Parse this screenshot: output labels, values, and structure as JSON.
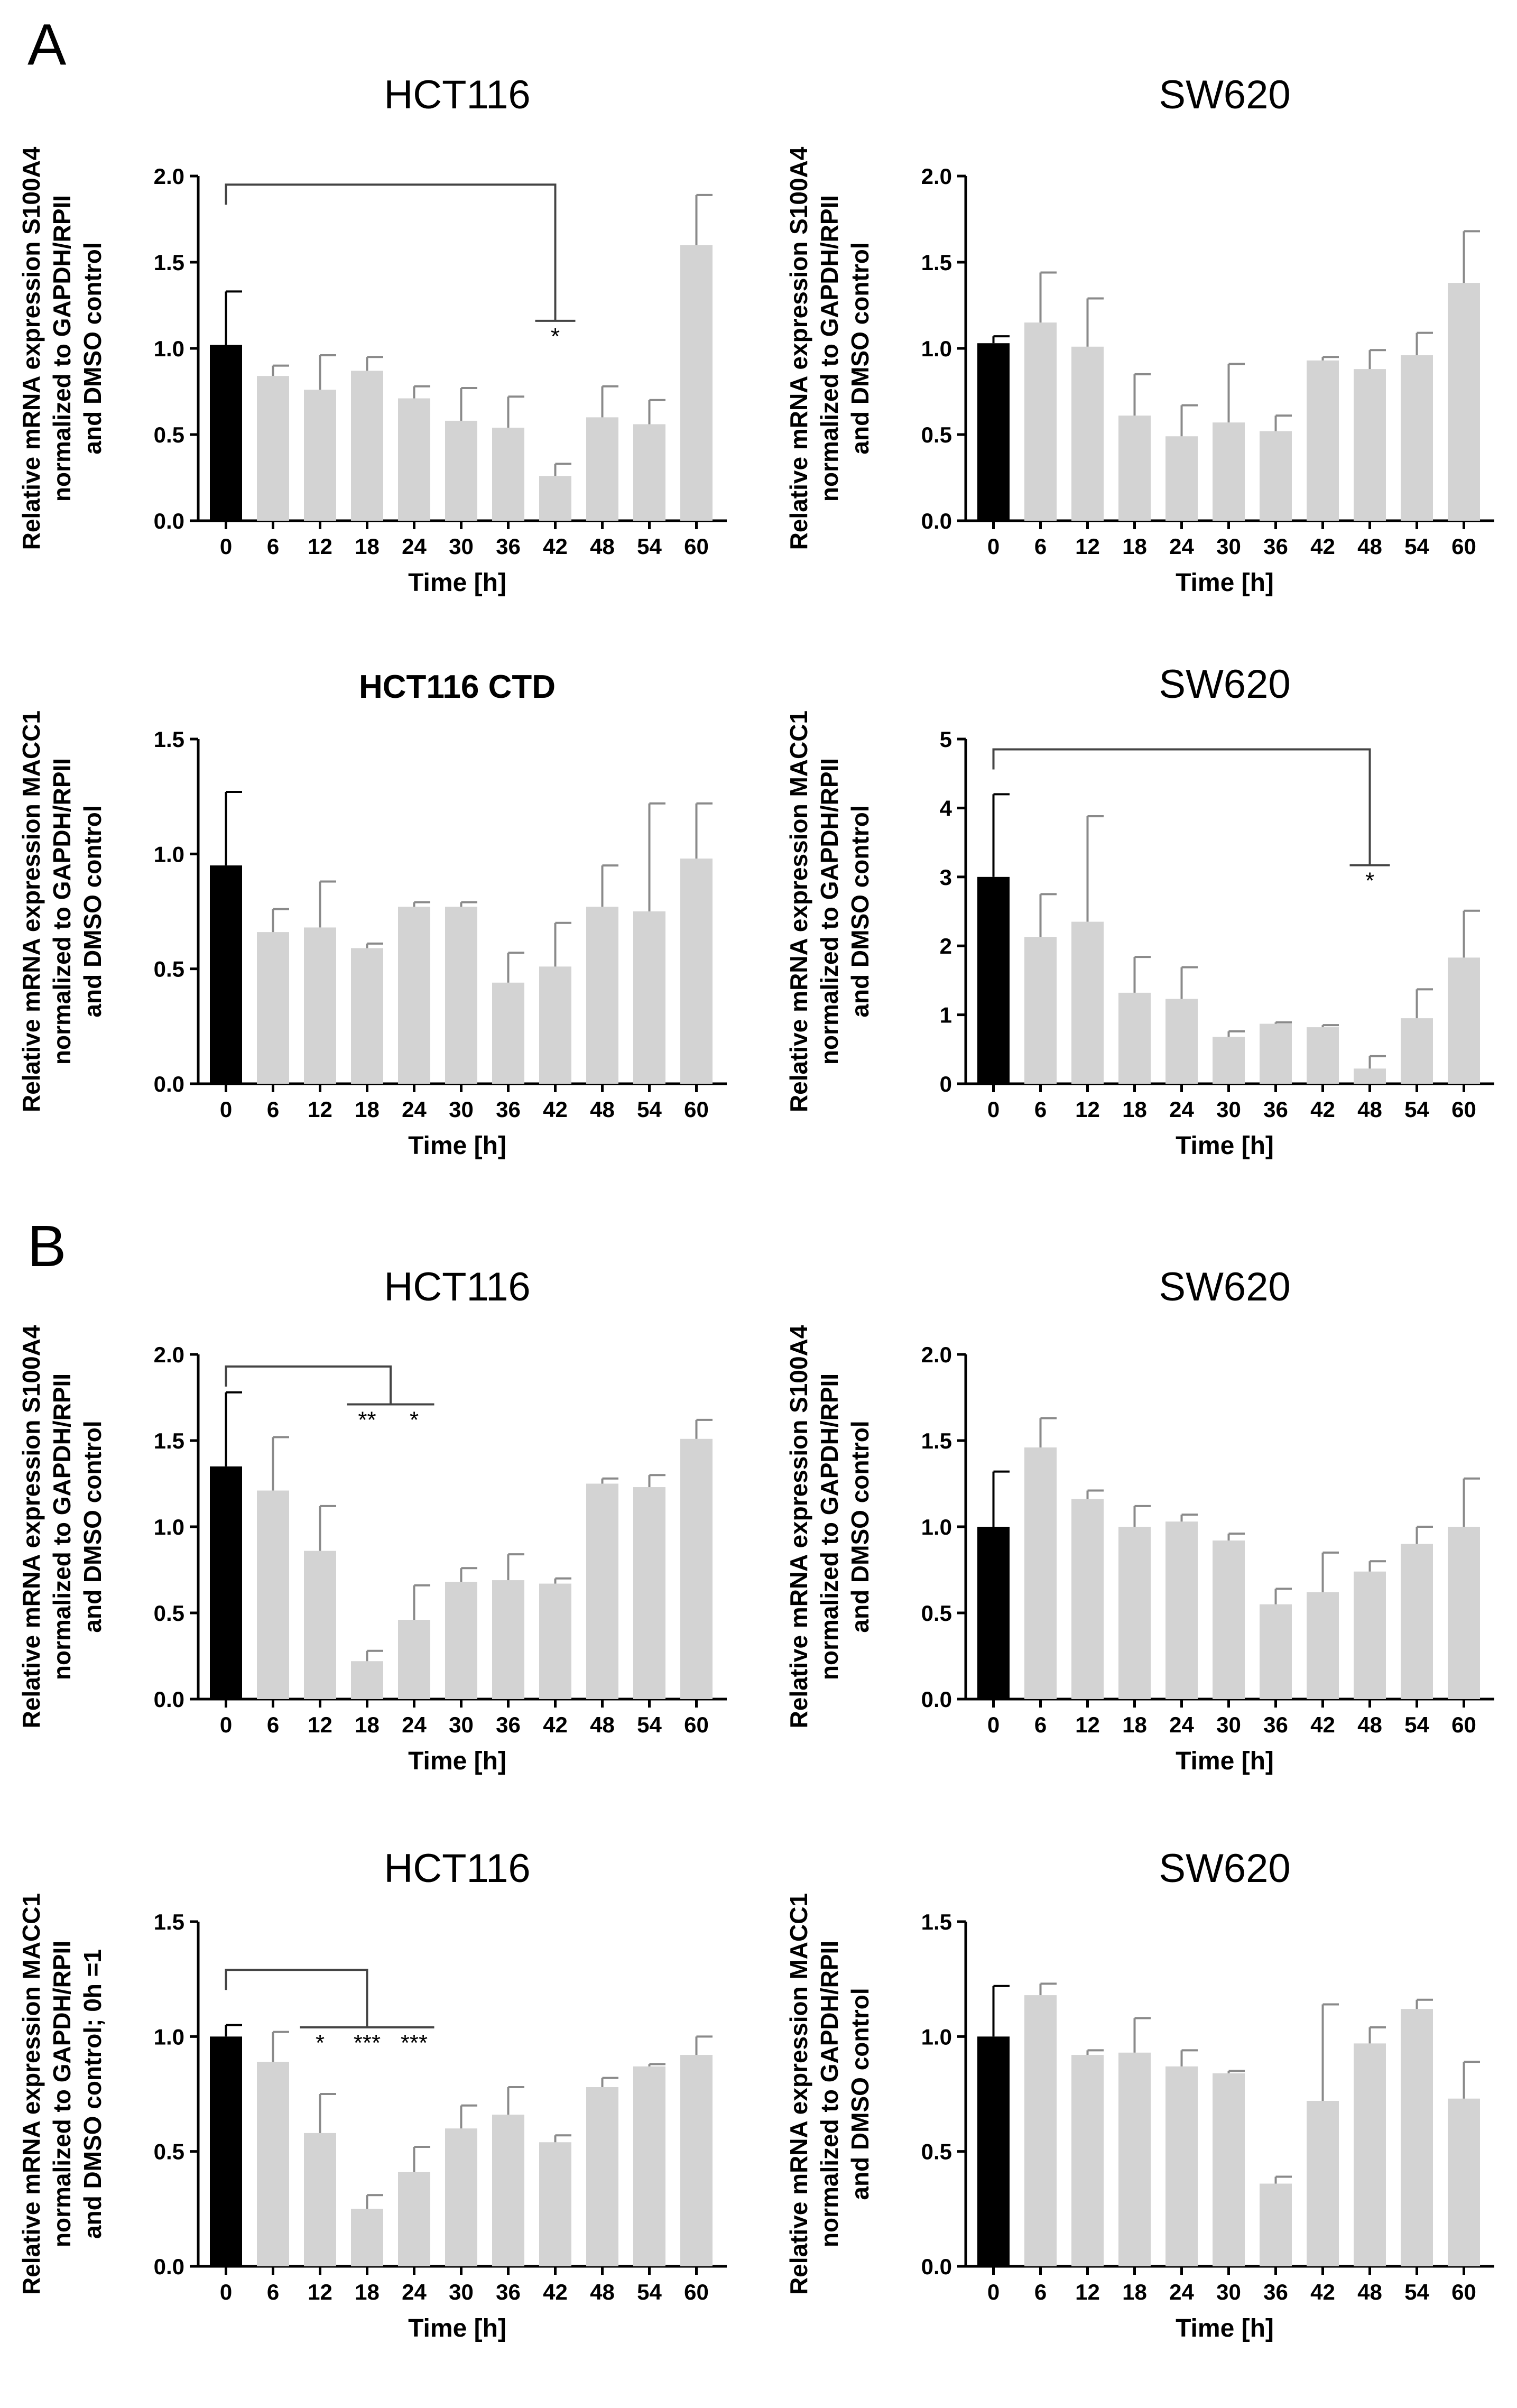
{
  "panel_labels": [
    "A",
    "B"
  ],
  "chart_data": [
    {
      "type": "bar",
      "title": "HCT116",
      "title_bold": false,
      "categories": [
        "0",
        "6",
        "12",
        "18",
        "24",
        "30",
        "36",
        "42",
        "48",
        "54",
        "60"
      ],
      "values": [
        1.02,
        0.84,
        0.76,
        0.87,
        0.71,
        0.58,
        0.54,
        0.26,
        0.6,
        0.56,
        1.6
      ],
      "errors": [
        0.31,
        0.06,
        0.2,
        0.08,
        0.07,
        0.19,
        0.18,
        0.07,
        0.18,
        0.14,
        0.29
      ],
      "xlabel": "Time  [h]",
      "ylabel": [
        "Relative mRNA expression S100A4",
        "normalized to GAPDH/RPII",
        "and DMSO control"
      ],
      "ylim": [
        0,
        2.0
      ],
      "yticks": [
        "0.0",
        "0.5",
        "1.0",
        "1.5",
        "2.0"
      ],
      "colors": {
        "control": "#000000",
        "bars": "#d3d3d3"
      },
      "significance": {
        "top": 1.95,
        "from": 0,
        "to_start": 7,
        "to_end": 7,
        "base": 1.16,
        "stars": [
          {
            "index": 7,
            "text": "*"
          }
        ]
      }
    },
    {
      "type": "bar",
      "title": "SW620",
      "title_bold": false,
      "categories": [
        "0",
        "6",
        "12",
        "18",
        "24",
        "30",
        "36",
        "42",
        "48",
        "54",
        "60"
      ],
      "values": [
        1.03,
        1.15,
        1.01,
        0.61,
        0.49,
        0.57,
        0.52,
        0.93,
        0.88,
        0.96,
        1.38
      ],
      "errors": [
        0.04,
        0.29,
        0.28,
        0.24,
        0.18,
        0.34,
        0.09,
        0.02,
        0.11,
        0.13,
        0.3
      ],
      "xlabel": "Time  [h]",
      "ylabel": [
        "Relative mRNA expression S100A4",
        "normalized to GAPDH/RPII",
        "and DMSO control"
      ],
      "ylim": [
        0,
        2.0
      ],
      "yticks": [
        "0.0",
        "0.5",
        "1.0",
        "1.5",
        "2.0"
      ],
      "colors": {
        "control": "#000000",
        "bars": "#d3d3d3"
      }
    },
    {
      "type": "bar",
      "title": "HCT116 CTD",
      "title_bold": true,
      "categories": [
        "0",
        "6",
        "12",
        "18",
        "24",
        "30",
        "36",
        "42",
        "48",
        "54",
        "60"
      ],
      "values": [
        0.95,
        0.66,
        0.68,
        0.59,
        0.77,
        0.77,
        0.44,
        0.51,
        0.77,
        0.75,
        0.98
      ],
      "errors": [
        0.32,
        0.1,
        0.2,
        0.02,
        0.02,
        0.02,
        0.13,
        0.19,
        0.18,
        0.47,
        0.24
      ],
      "xlabel": "Time  [h]",
      "ylabel": [
        "Relative mRNA expression MACC1",
        "normalized to GAPDH/RPII",
        "and  DMSO control"
      ],
      "ylim": [
        0,
        1.5
      ],
      "yticks": [
        "0.0",
        "0.5",
        "1.0",
        "1.5"
      ],
      "colors": {
        "control": "#000000",
        "bars": "#d3d3d3"
      }
    },
    {
      "type": "bar",
      "title": "SW620",
      "title_bold": false,
      "categories": [
        "0",
        "6",
        "12",
        "18",
        "24",
        "30",
        "36",
        "42",
        "48",
        "54",
        "60"
      ],
      "values": [
        3.0,
        2.13,
        2.35,
        1.32,
        1.23,
        0.68,
        0.87,
        0.82,
        0.22,
        0.95,
        1.83
      ],
      "errors": [
        1.2,
        0.62,
        1.53,
        0.52,
        0.46,
        0.08,
        0.02,
        0.03,
        0.18,
        0.42,
        0.68
      ],
      "xlabel": "Time  [h]",
      "ylabel": [
        "Relative mRNA expression MACC1",
        "normalized to GAPDH/RPII",
        "and  DMSO control"
      ],
      "ylim": [
        0,
        5
      ],
      "yticks": [
        "0",
        "1",
        "2",
        "3",
        "4",
        "5"
      ],
      "colors": {
        "control": "#000000",
        "bars": "#d3d3d3"
      },
      "significance": {
        "top": 4.85,
        "from": 0,
        "to_start": 8,
        "to_end": 8,
        "base": 3.17,
        "stars": [
          {
            "index": 8,
            "text": "*"
          }
        ]
      }
    },
    {
      "type": "bar",
      "title": "HCT116",
      "title_bold": false,
      "categories": [
        "0",
        "6",
        "12",
        "18",
        "24",
        "30",
        "36",
        "42",
        "48",
        "54",
        "60"
      ],
      "values": [
        1.35,
        1.21,
        0.86,
        0.22,
        0.46,
        0.68,
        0.69,
        0.67,
        1.25,
        1.23,
        1.51
      ],
      "errors": [
        0.43,
        0.31,
        0.26,
        0.06,
        0.2,
        0.08,
        0.15,
        0.03,
        0.03,
        0.07,
        0.11
      ],
      "xlabel": "Time [h]",
      "ylabel": [
        "Relative mRNA expression S100A4",
        "normalized to GAPDH/RPII",
        "and  DMSO control"
      ],
      "ylim": [
        0,
        2.0
      ],
      "yticks": [
        "0.0",
        "0.5",
        "1.0",
        "1.5",
        "2.0"
      ],
      "colors": {
        "control": "#000000",
        "bars": "#d3d3d3"
      },
      "significance": {
        "top": 1.93,
        "from": 0,
        "to_start": 3,
        "to_end": 4,
        "base": 1.71,
        "stars": [
          {
            "index": 3,
            "text": "**"
          },
          {
            "index": 4,
            "text": "*"
          }
        ]
      }
    },
    {
      "type": "bar",
      "title": "SW620",
      "title_bold": false,
      "categories": [
        "0",
        "6",
        "12",
        "18",
        "24",
        "30",
        "36",
        "42",
        "48",
        "54",
        "60"
      ],
      "values": [
        1.0,
        1.46,
        1.16,
        1.0,
        1.03,
        0.92,
        0.55,
        0.62,
        0.74,
        0.9,
        1.0
      ],
      "errors": [
        0.32,
        0.17,
        0.05,
        0.12,
        0.04,
        0.04,
        0.09,
        0.23,
        0.06,
        0.1,
        0.28
      ],
      "xlabel": "Time [h]",
      "ylabel": [
        "Relative mRNA expression S100A4",
        "normalized to GAPDH/RPII",
        "and DMSO control"
      ],
      "ylim": [
        0,
        2.0
      ],
      "yticks": [
        "0.0",
        "0.5",
        "1.0",
        "1.5",
        "2.0"
      ],
      "colors": {
        "control": "#000000",
        "bars": "#d3d3d3"
      }
    },
    {
      "type": "bar",
      "title": "HCT116",
      "title_bold": false,
      "categories": [
        "0",
        "6",
        "12",
        "18",
        "24",
        "30",
        "36",
        "42",
        "48",
        "54",
        "60"
      ],
      "values": [
        1.0,
        0.89,
        0.58,
        0.25,
        0.41,
        0.6,
        0.66,
        0.54,
        0.78,
        0.87,
        0.92
      ],
      "errors": [
        0.05,
        0.13,
        0.17,
        0.06,
        0.11,
        0.1,
        0.12,
        0.03,
        0.04,
        0.01,
        0.08
      ],
      "xlabel": "Time [h]",
      "ylabel": [
        "Relative mRNA expression MACC1",
        "normalized to GAPDH/RPII",
        "and  DMSO control; 0h  =1"
      ],
      "ylim": [
        0,
        1.5
      ],
      "yticks": [
        "0.0",
        "0.5",
        "1.0",
        "1.5"
      ],
      "colors": {
        "control": "#000000",
        "bars": "#d3d3d3"
      },
      "significance": {
        "top": 1.29,
        "from": 0,
        "to_start": 2,
        "to_end": 4,
        "base": 1.04,
        "stars": [
          {
            "index": 2,
            "text": "*"
          },
          {
            "index": 3,
            "text": "***"
          },
          {
            "index": 4,
            "text": "***"
          }
        ]
      }
    },
    {
      "type": "bar",
      "title": "SW620",
      "title_bold": false,
      "categories": [
        "0",
        "6",
        "12",
        "18",
        "24",
        "30",
        "36",
        "42",
        "48",
        "54",
        "60"
      ],
      "values": [
        1.0,
        1.18,
        0.92,
        0.93,
        0.87,
        0.84,
        0.36,
        0.72,
        0.97,
        1.12,
        0.73
      ],
      "errors": [
        0.22,
        0.05,
        0.02,
        0.15,
        0.07,
        0.01,
        0.03,
        0.42,
        0.07,
        0.04,
        0.16
      ],
      "xlabel": "Time [h]",
      "ylabel": [
        "Relative mRNA expression MACC1",
        "normalized to GAPDH/RPII",
        "and DMSO control"
      ],
      "ylim": [
        0,
        1.5
      ],
      "yticks": [
        "0.0",
        "0.5",
        "1.0",
        "1.5"
      ],
      "colors": {
        "control": "#000000",
        "bars": "#d3d3d3"
      }
    }
  ]
}
